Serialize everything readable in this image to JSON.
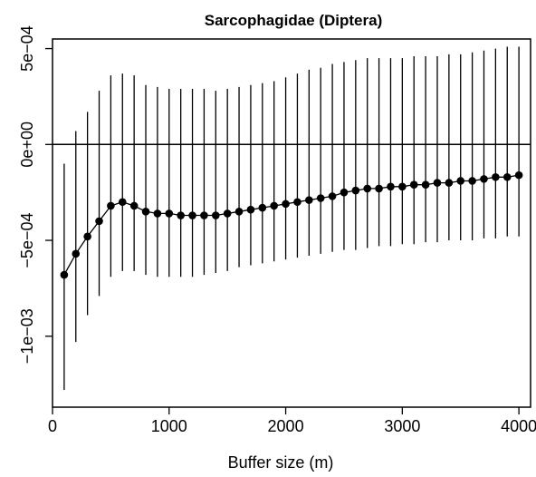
{
  "chart_data": {
    "type": "scatter",
    "title": "Sarcophagidae (Diptera)",
    "xlabel": "Buffer size (m)",
    "ylabel": "",
    "xlim": [
      0,
      4100
    ],
    "ylim": [
      -0.00137,
      0.00055
    ],
    "xticks": [
      0,
      1000,
      2000,
      3000,
      4000
    ],
    "xtick_labels": [
      "0",
      "1000",
      "2000",
      "3000",
      "4000"
    ],
    "yticks": [
      0.0005,
      0,
      -0.0005,
      -0.001
    ],
    "ytick_labels": [
      "5e−04",
      "0e+00",
      "−5e−04",
      "−1e−03"
    ],
    "reference_line": 0,
    "grid": false,
    "legend": "none",
    "series": [
      {
        "style": "points connected by line with vertical error bars",
        "color": "#000000",
        "x": [
          100,
          200,
          300,
          400,
          500,
          600,
          700,
          800,
          900,
          1000,
          1100,
          1200,
          1300,
          1400,
          1500,
          1600,
          1700,
          1800,
          1900,
          2000,
          2100,
          2200,
          2300,
          2400,
          2500,
          2600,
          2700,
          2800,
          2900,
          3000,
          3100,
          3200,
          3300,
          3400,
          3500,
          3600,
          3700,
          3800,
          3900,
          4000
        ],
        "y": [
          -0.00068,
          -0.00057,
          -0.00048,
          -0.0004,
          -0.00032,
          -0.0003,
          -0.00032,
          -0.00035,
          -0.00036,
          -0.00036,
          -0.00037,
          -0.00037,
          -0.00037,
          -0.00037,
          -0.00036,
          -0.00035,
          -0.00034,
          -0.00033,
          -0.00032,
          -0.00031,
          -0.0003,
          -0.00029,
          -0.00028,
          -0.00027,
          -0.00025,
          -0.00024,
          -0.00023,
          -0.00023,
          -0.00022,
          -0.00022,
          -0.00021,
          -0.00021,
          -0.0002,
          -0.0002,
          -0.00019,
          -0.00019,
          -0.00018,
          -0.00017,
          -0.00017,
          -0.00016
        ],
        "lower": [
          -0.00128,
          -0.00103,
          -0.00089,
          -0.00079,
          -0.00069,
          -0.00066,
          -0.00066,
          -0.00068,
          -0.00069,
          -0.00069,
          -0.00069,
          -0.00069,
          -0.00068,
          -0.00067,
          -0.00066,
          -0.00064,
          -0.00063,
          -0.00062,
          -0.00061,
          -0.0006,
          -0.00059,
          -0.00058,
          -0.00057,
          -0.00056,
          -0.00055,
          -0.00055,
          -0.00054,
          -0.00053,
          -0.00053,
          -0.00052,
          -0.00052,
          -0.00051,
          -0.00051,
          -0.0005,
          -0.0005,
          -0.0005,
          -0.00049,
          -0.00049,
          -0.00048,
          -0.00048
        ],
        "upper": [
          -0.0001,
          7e-05,
          0.00017,
          0.00028,
          0.00036,
          0.00037,
          0.00036,
          0.00031,
          0.0003,
          0.00029,
          0.00029,
          0.00029,
          0.00029,
          0.00028,
          0.00029,
          0.0003,
          0.00031,
          0.00032,
          0.00033,
          0.00035,
          0.00037,
          0.00039,
          0.0004,
          0.00042,
          0.00043,
          0.00044,
          0.00045,
          0.00045,
          0.00045,
          0.00045,
          0.00046,
          0.00046,
          0.00046,
          0.00047,
          0.00047,
          0.00048,
          0.00049,
          0.0005,
          0.00051,
          0.00051
        ]
      }
    ]
  }
}
